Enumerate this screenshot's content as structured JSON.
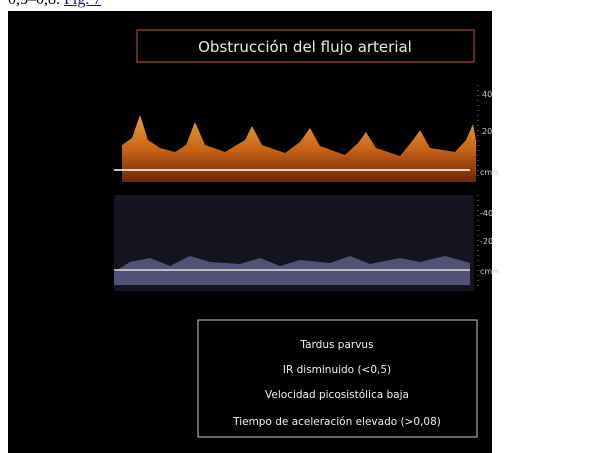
{
  "caption": {
    "text": "0,5–0,8.",
    "link": "Fig. 7"
  },
  "figure": {
    "title": "Obstrucción del flujo arterial",
    "upper_scale": [
      "40",
      "20",
      "cm/s"
    ],
    "lower_scale": [
      "-40",
      "-20",
      "cm/s"
    ],
    "findings": [
      "Tardus parvus",
      "IR disminuido (<0,5)",
      "Velocidad picosistólica baja",
      "Tiempo de aceleración elevado (>0,08)"
    ]
  }
}
